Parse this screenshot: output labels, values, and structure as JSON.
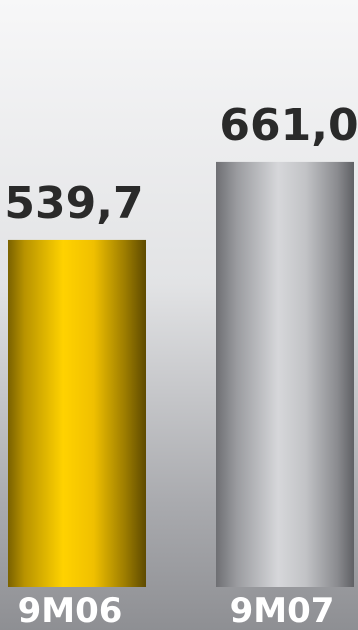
{
  "chart_data": {
    "type": "bar",
    "categories": [
      "9M06",
      "9M07"
    ],
    "values": [
      539.7,
      661.0
    ],
    "value_labels": [
      "539,7",
      "661,0"
    ],
    "colors": [
      "#f2c200",
      "#c4c5c8"
    ],
    "title": "",
    "xlabel": "",
    "ylabel": "",
    "grid": false
  }
}
